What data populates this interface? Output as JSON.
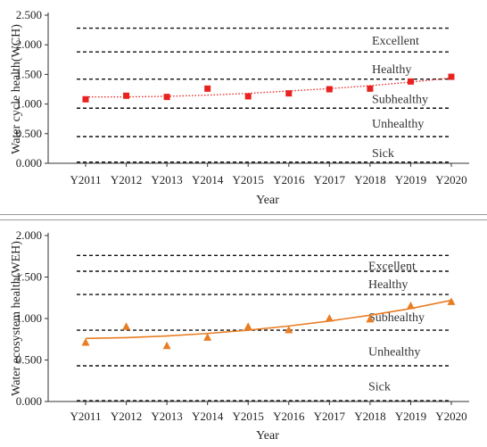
{
  "chart_data": [
    {
      "type": "scatter",
      "xlabel": "Year",
      "ylabel": "Water cycle health(WCH)",
      "x": [
        "Y2011",
        "Y2012",
        "Y2013",
        "Y2014",
        "Y2015",
        "Y2016",
        "Y2017",
        "Y2018",
        "Y2019",
        "Y2020"
      ],
      "y_ticks": [
        "0.000",
        "0.500",
        "1.000",
        "1.500",
        "2.000",
        "2.500"
      ],
      "ylim": [
        0,
        2.5
      ],
      "series": [
        {
          "values": [
            1.08,
            1.14,
            1.12,
            1.26,
            1.13,
            1.18,
            1.25,
            1.26,
            1.38,
            1.46
          ],
          "color": "#e8221e",
          "marker": "square"
        }
      ],
      "trendline": {
        "style": "dotted",
        "color": "#e8221e",
        "values": [
          1.12,
          1.12,
          1.13,
          1.15,
          1.18,
          1.22,
          1.26,
          1.31,
          1.37,
          1.44
        ]
      },
      "thresholds": [
        0.02,
        0.45,
        0.93,
        1.42,
        1.88,
        2.28
      ],
      "bands": [
        {
          "label": "Excellent",
          "y": 2.08
        },
        {
          "label": "Healthy",
          "y": 1.6
        },
        {
          "label": "Subhealthy",
          "y": 1.09
        },
        {
          "label": "Unhealthy",
          "y": 0.68
        },
        {
          "label": "Sick",
          "y": 0.18
        }
      ]
    },
    {
      "type": "scatter",
      "xlabel": "Year",
      "ylabel": "Water ecosystem health(WEH)",
      "x": [
        "Y2011",
        "Y2012",
        "Y2013",
        "Y2014",
        "Y2015",
        "Y2016",
        "Y2017",
        "Y2018",
        "Y2019",
        "Y2020"
      ],
      "y_ticks": [
        "0.000",
        "0.500",
        "1.000",
        "1.500",
        "2.000"
      ],
      "ylim": [
        0,
        2.0
      ],
      "series": [
        {
          "values": [
            0.71,
            0.9,
            0.67,
            0.77,
            0.9,
            0.86,
            1.0,
            0.99,
            1.15,
            1.2
          ],
          "color": "#e87d24",
          "marker": "triangle"
        }
      ],
      "trendline": {
        "style": "solid",
        "color": "#e87d24",
        "values": [
          0.76,
          0.77,
          0.79,
          0.82,
          0.86,
          0.91,
          0.97,
          1.04,
          1.12,
          1.22
        ]
      },
      "thresholds": [
        0.01,
        0.43,
        0.86,
        1.29,
        1.57,
        1.76
      ],
      "bands": [
        {
          "label": "Excellent",
          "y": 1.64
        },
        {
          "label": "Healthy",
          "y": 1.42
        },
        {
          "label": "Subhealthy",
          "y": 1.02
        },
        {
          "label": "Unhealthy",
          "y": 0.61
        },
        {
          "label": "Sick",
          "y": 0.19
        }
      ]
    }
  ]
}
